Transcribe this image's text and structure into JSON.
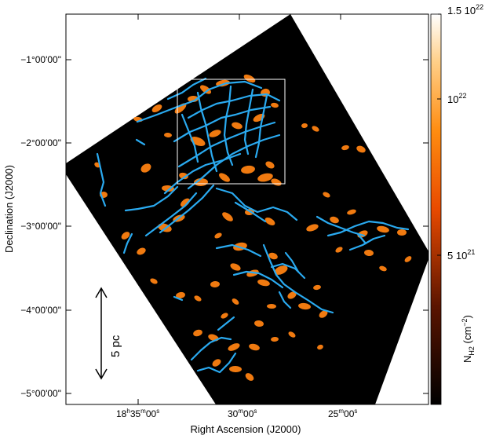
{
  "figure": {
    "xlabel": "Right Ascension (J2000)",
    "ylabel": "Declination (J2000)",
    "x_ticks": [
      {
        "h": "18",
        "m": "35",
        "s": "00",
        "suffix": "s"
      },
      {
        "h": "",
        "m": "30",
        "s": "00",
        "suffix": "s"
      },
      {
        "h": "",
        "m": "25",
        "s": "00",
        "suffix": "s"
      }
    ],
    "y_ticks": [
      "−1°00′ 00″",
      "−2°00′00″",
      "−3°00′00″",
      "−4°00′00″",
      "−5°00′00″"
    ],
    "y_tick_labels": [
      "−1°00'00\"",
      "−2°00'00\"",
      "−3°00'00\"",
      "−4°00'00\"",
      "−5°00'00\""
    ],
    "scale_bar_label": "5 pc",
    "colorbar": {
      "title": "N",
      "title_sub": "H2",
      "unit": "(cm",
      "unit_sup": "−2",
      "unit_close": ")",
      "tick_top": "1.5 10",
      "tick_top_exp": "22",
      "tick_mid": "10",
      "tick_mid_exp": "22",
      "tick_low": "5 10",
      "tick_low_exp": "21"
    },
    "colors": {
      "map_background": "#000000",
      "filament": "#2aaaf0",
      "clump": "#f07a10",
      "box": "#ffffff"
    }
  }
}
